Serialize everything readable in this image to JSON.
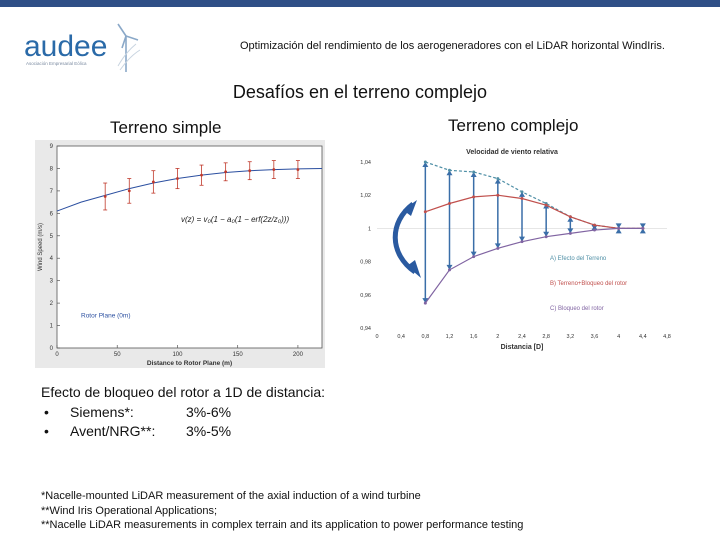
{
  "header": {
    "logo_text": "audee",
    "logo_tagline": "Asociación Empresarial Eólica",
    "title": "Optimización del rendimiento de los aerogeneradores con el LiDAR horizontal WindIris."
  },
  "slide_title": "Desafíos en el terreno complejo",
  "subtitles": {
    "left": "Terreno simple",
    "right": "Terreno complejo"
  },
  "chart_data": [
    {
      "type": "line",
      "xlabel": "Distance to Rotor Plane (m)",
      "ylabel": "Wind Speed (m/s)",
      "xlim": [
        0,
        220
      ],
      "ylim": [
        0,
        9
      ],
      "x_ticks": [
        "0",
        "50",
        "100",
        "150",
        "200"
      ],
      "y_ticks": [
        "0",
        "1",
        "2",
        "3",
        "4",
        "5",
        "6",
        "7",
        "8",
        "9"
      ],
      "grid": false,
      "annotation": "Rotor Plane (0m)",
      "series": [
        {
          "x": [
            0,
            20,
            40,
            60,
            80,
            100,
            120,
            140,
            160,
            180,
            200,
            220
          ],
          "y": [
            6.1,
            6.5,
            6.8,
            7.1,
            7.35,
            7.55,
            7.7,
            7.82,
            7.9,
            7.95,
            7.98,
            8.0
          ]
        }
      ],
      "points": {
        "x": [
          40,
          60,
          80,
          100,
          120,
          140,
          160,
          180,
          200
        ],
        "y": [
          6.75,
          7.0,
          7.4,
          7.55,
          7.7,
          7.85,
          7.9,
          7.95,
          7.95
        ],
        "err": [
          0.6,
          0.55,
          0.5,
          0.45,
          0.45,
          0.4,
          0.4,
          0.4,
          0.4
        ]
      }
    },
    {
      "type": "line",
      "title": "Velocidad de viento relativa",
      "xlabel": "Distancia [D]",
      "x_ticks": [
        "0",
        "0,4",
        "0,8",
        "1,2",
        "1,6",
        "2",
        "2,4",
        "2,8",
        "3,2",
        "3,6",
        "4",
        "4,4",
        "4,8"
      ],
      "y_ticks": [
        "0,94",
        "0,96",
        "0,98",
        "1",
        "1,02",
        "1,04"
      ],
      "xlim": [
        0,
        4.8
      ],
      "ylim": [
        0.94,
        1.04
      ],
      "grid": false,
      "legend": [
        "A) Efecto del Terreno",
        "B) Terreno+Bloqueo del rotor",
        "C) Bloqueo del rotor"
      ],
      "series": [
        {
          "name": "A) Efecto del Terreno",
          "color": "#4f8fa6",
          "x": [
            0.8,
            1.2,
            1.6,
            2.0,
            2.4,
            2.8,
            3.2,
            3.6,
            4.0,
            4.4
          ],
          "y": [
            1.04,
            1.035,
            1.034,
            1.03,
            1.022,
            1.015,
            1.007,
            1.002,
            1.0,
            1.0
          ]
        },
        {
          "name": "B) Terreno+Bloqueo del rotor",
          "color": "#c0504d",
          "x": [
            0.8,
            1.2,
            1.6,
            2.0,
            2.4,
            2.8,
            3.2,
            3.6,
            4.0,
            4.4
          ],
          "y": [
            1.01,
            1.015,
            1.019,
            1.02,
            1.018,
            1.014,
            1.007,
            1.002,
            1.0,
            1.0
          ]
        },
        {
          "name": "C) Bloqueo del rotor",
          "color": "#8064a2",
          "x": [
            0.8,
            1.2,
            1.6,
            2.0,
            2.4,
            2.8,
            3.2,
            3.6,
            4.0,
            4.4
          ],
          "y": [
            0.955,
            0.975,
            0.983,
            0.988,
            0.992,
            0.995,
            0.997,
            0.999,
            1.0,
            1.0
          ]
        }
      ]
    }
  ],
  "body": {
    "paragraph": "Efecto de bloqueo del rotor a 1D de distancia:",
    "rows": [
      {
        "bullet": "•",
        "label": "Siemens*:",
        "value": "3%-6%"
      },
      {
        "bullet": "•",
        "label": "Avent/NRG**:",
        "value": "3%-5%"
      }
    ]
  },
  "footnotes": [
    "*Nacelle-mounted LiDAR measurement of the axial induction of a wind turbine",
    "**Wind Iris Operational Applications;",
    "**Nacelle LiDAR measurements in complex terrain and its application to power performance testing"
  ]
}
